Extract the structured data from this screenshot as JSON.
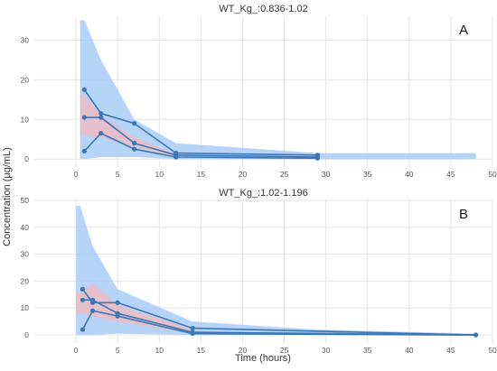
{
  "figure": {
    "ylabel": "Concentration (μg/mL)",
    "xlabel": "Time (hours)"
  },
  "colors": {
    "outer_band": "#a9cdf7",
    "inner_band": "#f3b9c0",
    "line": "#3a77b5",
    "grid": "#e4e4e4",
    "axis_text": "#555555"
  },
  "chart_data": [
    {
      "type": "area",
      "title": "WT_Kg_:0.836-1.02",
      "panel_label": "A",
      "xlim": [
        -5,
        50
      ],
      "ylim": [
        -2,
        36
      ],
      "xticks": [
        0,
        5,
        10,
        15,
        20,
        25,
        30,
        35,
        40,
        45,
        50
      ],
      "yticks": [
        0,
        10,
        20,
        30
      ],
      "grid": true,
      "bands": [
        {
          "kind": "outer",
          "x": [
            0.5,
            1,
            3,
            7,
            12,
            29,
            48
          ],
          "upper": [
            35,
            35,
            25,
            10,
            4,
            1.5,
            1.5
          ],
          "lower": [
            0,
            0,
            0.5,
            0.5,
            0,
            0,
            0
          ]
        },
        {
          "kind": "inner",
          "x": [
            0.5,
            1,
            3,
            7,
            12
          ],
          "upper": [
            16,
            16,
            11,
            5.5,
            1.2
          ],
          "lower": [
            6,
            6,
            5.5,
            3,
            0.5
          ]
        }
      ],
      "series": [
        {
          "x": [
            1,
            3,
            7,
            12,
            29
          ],
          "values": [
            17.5,
            11.5,
            9,
            1.5,
            1
          ]
        },
        {
          "x": [
            1,
            3,
            7,
            12,
            29
          ],
          "values": [
            10.5,
            10.5,
            4,
            1,
            0.5
          ]
        },
        {
          "x": [
            1,
            3,
            7,
            12,
            29
          ],
          "values": [
            2,
            6.5,
            2.5,
            0.5,
            0.2
          ]
        }
      ]
    },
    {
      "type": "area",
      "title": "WT_Kg_:1.02-1.196",
      "panel_label": "B",
      "xlim": [
        -5,
        50
      ],
      "ylim": [
        -3,
        50
      ],
      "xticks": [
        0,
        5,
        10,
        15,
        20,
        25,
        30,
        35,
        40,
        45,
        50
      ],
      "yticks": [
        0,
        10,
        20,
        30,
        40,
        50
      ],
      "grid": true,
      "bands": [
        {
          "kind": "outer",
          "x": [
            0,
            0.5,
            2,
            5,
            14,
            29,
            48
          ],
          "upper": [
            48,
            48,
            33,
            17,
            5,
            2,
            0.5
          ],
          "lower": [
            0,
            0,
            0,
            0.5,
            0,
            0,
            0
          ]
        },
        {
          "kind": "inner",
          "x": [
            0,
            0.5,
            2,
            5,
            14
          ],
          "upper": [
            16,
            16,
            19,
            11,
            2
          ],
          "lower": [
            8,
            8,
            7,
            5,
            0.5
          ]
        }
      ],
      "series": [
        {
          "x": [
            0.8,
            2,
            5,
            14,
            48
          ],
          "values": [
            17,
            12,
            12,
            2.5,
            0
          ]
        },
        {
          "x": [
            0.8,
            2,
            5,
            14,
            48
          ],
          "values": [
            13,
            13,
            8,
            1,
            0
          ]
        },
        {
          "x": [
            0.8,
            2,
            5,
            14,
            48
          ],
          "values": [
            2,
            9,
            7,
            0.5,
            0
          ]
        }
      ]
    }
  ]
}
